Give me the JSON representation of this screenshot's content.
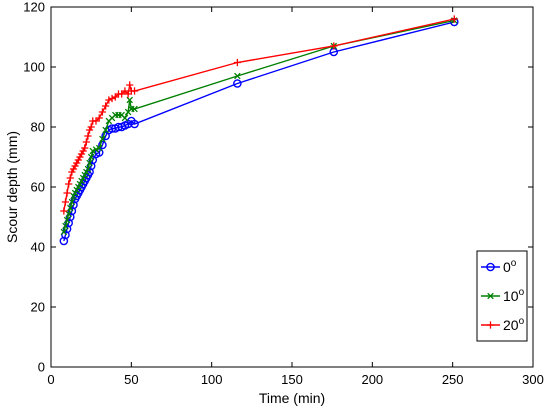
{
  "chart_data": {
    "type": "line",
    "xlabel": "Time (min)",
    "ylabel": "Scour depth (mm)",
    "xlim": [
      0,
      300
    ],
    "ylim": [
      0,
      120
    ],
    "xticks": [
      0,
      50,
      100,
      150,
      200,
      250,
      300
    ],
    "yticks": [
      0,
      20,
      40,
      60,
      80,
      100,
      120
    ],
    "grid": false,
    "legend_position": "right",
    "series": [
      {
        "name": "0",
        "name_superscript": "o",
        "color": "#0000ff",
        "marker": "circle",
        "x": [
          8,
          9,
          10,
          11,
          12,
          13,
          14,
          15,
          16,
          17,
          18,
          19,
          20,
          21,
          22,
          23,
          24,
          25,
          26,
          28,
          30,
          32,
          34,
          36,
          38,
          40,
          42,
          44,
          46,
          48,
          50,
          52,
          116,
          176,
          251
        ],
        "y": [
          42,
          44,
          46,
          48,
          50,
          52,
          54,
          56,
          57,
          58,
          59,
          60,
          61,
          62,
          63,
          64,
          65,
          67,
          69,
          71,
          71.5,
          74,
          77,
          79,
          79.5,
          79.5,
          80,
          80,
          80.5,
          81,
          82,
          81,
          94.5,
          105,
          115
        ]
      },
      {
        "name": "10",
        "name_superscript": "o",
        "color": "#008000",
        "marker": "x",
        "x": [
          8,
          9,
          10,
          11,
          12,
          13,
          14,
          15,
          16,
          17,
          18,
          19,
          20,
          21,
          22,
          23,
          24,
          25,
          26,
          28,
          30,
          32,
          34,
          36,
          38,
          40,
          42,
          44,
          46,
          48,
          49,
          50,
          52,
          116,
          176,
          251
        ],
        "y": [
          45,
          47,
          49,
          51,
          53,
          55,
          57,
          58,
          59,
          60,
          61,
          62,
          63,
          64,
          65,
          66,
          68,
          70,
          72,
          72.5,
          73,
          76,
          79,
          82,
          83,
          84,
          84,
          84,
          83,
          85,
          89,
          86,
          86,
          97,
          107,
          115.5
        ]
      },
      {
        "name": "20",
        "name_superscript": "o",
        "color": "#ff0000",
        "marker": "plus",
        "x": [
          8,
          9,
          10,
          11,
          12,
          13,
          14,
          15,
          16,
          17,
          18,
          19,
          20,
          21,
          22,
          23,
          24,
          25,
          26,
          28,
          30,
          32,
          34,
          36,
          38,
          40,
          42,
          44,
          46,
          48,
          49,
          50,
          52,
          116,
          176,
          251
        ],
        "y": [
          52,
          55,
          58,
          61,
          63,
          65,
          66,
          67,
          68,
          69,
          70,
          71,
          72,
          73,
          75,
          77,
          79,
          80,
          82,
          82,
          83,
          85,
          87,
          89,
          89.5,
          90,
          91,
          91,
          92,
          91,
          94,
          92,
          92,
          101.5,
          107,
          116
        ]
      }
    ]
  }
}
